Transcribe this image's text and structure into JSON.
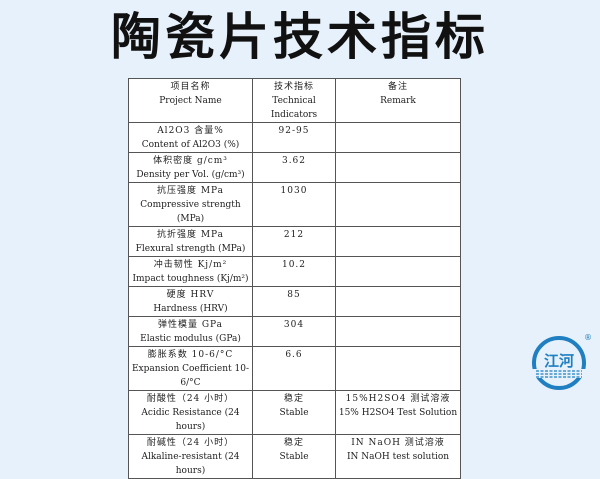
{
  "title": "陶瓷片技术指标",
  "table": {
    "header": {
      "zh": [
        "项目名称",
        "技术指标",
        "备注"
      ],
      "en": [
        "Project Name",
        "Technical Indicators",
        "Remark"
      ]
    },
    "rows": [
      {
        "name_zh": "Al2O3 含量%",
        "name_en": "Content of Al2O3 (%)",
        "value_zh": "92-95",
        "value_en": "",
        "remark_zh": "",
        "remark_en": ""
      },
      {
        "name_zh": "体积密度 g/cm³",
        "name_en": "Density per Vol. (g/cm³)",
        "value_zh": "3.62",
        "value_en": "",
        "remark_zh": "",
        "remark_en": ""
      },
      {
        "name_zh": "抗压强度 MPa",
        "name_en": "Compressive strength (MPa)",
        "value_zh": "1030",
        "value_en": "",
        "remark_zh": "",
        "remark_en": ""
      },
      {
        "name_zh": "抗折强度 MPa",
        "name_en": "Flexural strength (MPa)",
        "value_zh": "212",
        "value_en": "",
        "remark_zh": "",
        "remark_en": ""
      },
      {
        "name_zh": "冲击韧性 Kj/m²",
        "name_en": "Impact toughness (Kj/m²)",
        "value_zh": "10.2",
        "value_en": "",
        "remark_zh": "",
        "remark_en": ""
      },
      {
        "name_zh": "硬度 HRV",
        "name_en": "Hardness (HRV)",
        "value_zh": "85",
        "value_en": "",
        "remark_zh": "",
        "remark_en": ""
      },
      {
        "name_zh": "弹性模量 GPa",
        "name_en": "Elastic modulus (GPa)",
        "value_zh": "304",
        "value_en": "",
        "remark_zh": "",
        "remark_en": ""
      },
      {
        "name_zh": "膨胀系数 10-6/°C",
        "name_en": "Expansion Coefficient 10-6/°C",
        "value_zh": "6.6",
        "value_en": "",
        "remark_zh": "",
        "remark_en": ""
      },
      {
        "name_zh": "耐酸性（24 小时）",
        "name_en": "Acidic Resistance (24 hours)",
        "value_zh": "稳定",
        "value_en": "Stable",
        "remark_zh": "15%H2SO4 测试溶液",
        "remark_en": "15% H2SO4 Test Solution"
      },
      {
        "name_zh": "耐碱性（24 小时）",
        "name_en": "Alkaline-resistant (24 hours)",
        "value_zh": "稳定",
        "value_en": "Stable",
        "remark_zh": "IN   NaOH 测试溶液",
        "remark_en": "IN NaOH test solution"
      }
    ]
  },
  "logo": {
    "text": "江河",
    "mark": "®",
    "color": "#1f7fc1"
  }
}
